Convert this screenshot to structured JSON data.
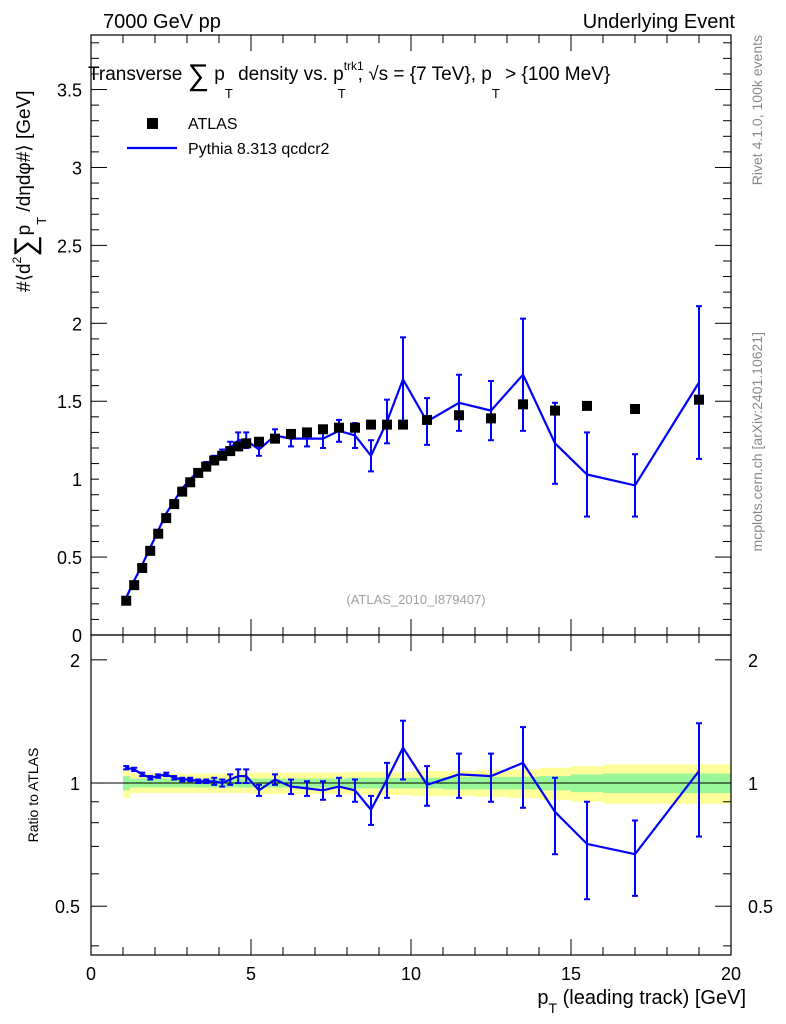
{
  "header": {
    "left": "7000 GeV pp",
    "right": "Underlying Event"
  },
  "side_labels": {
    "rivet": "Rivet 4.1.0,  100k events",
    "mcplots": "mcplots.cern.ch [arXiv:2401.10621]"
  },
  "chart_data": [
    {
      "type": "scatter",
      "panel": "main",
      "title": {
        "lead": "Transverse ",
        "sum": "∑",
        "p": " p",
        "p_sub": "T",
        "mid": "  density vs. p",
        "sup": "trk1",
        "sub2": "T",
        "tail": ", √s = {7 TeV}, p",
        "sub3": "T",
        "end": " > {100 MeV}"
      },
      "ylabel": {
        "pre": "#⟨d",
        "sup": "2",
        "sum": "∑",
        "p": "p",
        "sub": "T",
        "post": " /dηdφ#⟩ [GeV]"
      },
      "watermark": "(ATLAS_2010_I879407)",
      "xlim": [
        0,
        20
      ],
      "ylim": [
        0,
        3.85
      ],
      "yticks": [
        "0.5",
        "1",
        "1.5",
        "2",
        "2.5",
        "3",
        "3.5"
      ],
      "bottom_tick_label": "0",
      "legend": [
        {
          "name": "ATLAS",
          "marker": "square",
          "color": "#000000"
        },
        {
          "name": "Pythia 8.313 qcdcr2",
          "marker": "line",
          "color": "#0000ff"
        }
      ],
      "series": [
        {
          "name": "ATLAS",
          "x": [
            1.1,
            1.35,
            1.6,
            1.85,
            2.1,
            2.35,
            2.6,
            2.85,
            3.1,
            3.35,
            3.6,
            3.85,
            4.1,
            4.35,
            4.6,
            4.85,
            5.25,
            5.75,
            6.25,
            6.75,
            7.25,
            7.75,
            8.25,
            8.75,
            9.25,
            9.75,
            10.5,
            11.5,
            12.5,
            13.5,
            14.5,
            15.5,
            17.0,
            19.0
          ],
          "y": [
            0.22,
            0.32,
            0.43,
            0.54,
            0.65,
            0.75,
            0.84,
            0.92,
            0.98,
            1.04,
            1.08,
            1.12,
            1.15,
            1.18,
            1.21,
            1.23,
            1.24,
            1.26,
            1.29,
            1.3,
            1.32,
            1.33,
            1.33,
            1.35,
            1.35,
            1.35,
            1.38,
            1.41,
            1.39,
            1.48,
            1.44,
            1.47,
            1.45,
            1.51
          ]
        },
        {
          "name": "Pythia 8.313 qcdcr2",
          "x": [
            1.1,
            1.35,
            1.6,
            1.85,
            2.1,
            2.35,
            2.6,
            2.85,
            3.1,
            3.35,
            3.6,
            3.85,
            4.1,
            4.35,
            4.6,
            4.85,
            5.25,
            5.75,
            6.25,
            6.75,
            7.25,
            7.75,
            8.25,
            8.75,
            9.25,
            9.75,
            10.5,
            11.5,
            12.5,
            13.5,
            14.5,
            15.5,
            17.0,
            19.0
          ],
          "y": [
            0.24,
            0.35,
            0.45,
            0.56,
            0.67,
            0.78,
            0.86,
            0.94,
            1.0,
            1.05,
            1.09,
            1.13,
            1.16,
            1.2,
            1.25,
            1.25,
            1.19,
            1.28,
            1.26,
            1.26,
            1.26,
            1.31,
            1.28,
            1.15,
            1.37,
            1.64,
            1.37,
            1.49,
            1.44,
            1.67,
            1.23,
            1.03,
            0.96,
            1.62
          ],
          "err": [
            0.01,
            0.01,
            0.01,
            0.01,
            0.01,
            0.01,
            0.01,
            0.01,
            0.01,
            0.01,
            0.02,
            0.02,
            0.03,
            0.04,
            0.05,
            0.05,
            0.04,
            0.04,
            0.05,
            0.05,
            0.06,
            0.07,
            0.08,
            0.1,
            0.14,
            0.27,
            0.15,
            0.18,
            0.19,
            0.36,
            0.26,
            0.27,
            0.2,
            0.49
          ]
        }
      ]
    },
    {
      "type": "line",
      "panel": "ratio",
      "ylabel": "Ratio to ATLAS",
      "xlabel": {
        "pre": "p",
        "sub": "T",
        "post": " (leading track) [GeV]"
      },
      "xlim": [
        0,
        20
      ],
      "ylim": [
        0.38,
        2.3
      ],
      "yscale": "log",
      "yticks": [
        "0.5",
        "1",
        "2"
      ],
      "xticks": [
        "0",
        "5",
        "10",
        "15",
        "20"
      ],
      "reference": 1,
      "uncertainty_bands": {
        "x_edges": [
          1.0,
          1.225,
          1.475,
          1.725,
          1.975,
          2.225,
          2.475,
          2.725,
          2.975,
          3.225,
          3.475,
          3.725,
          3.975,
          4.225,
          4.475,
          4.725,
          5.0,
          5.5,
          6.0,
          6.5,
          7.0,
          7.5,
          8.0,
          8.5,
          9.0,
          9.5,
          10.0,
          11.0,
          12.0,
          13.0,
          14.0,
          15.0,
          16.0,
          18.0,
          20.0
        ],
        "inner_halfwidth": [
          0.04,
          0.025,
          0.025,
          0.025,
          0.025,
          0.025,
          0.025,
          0.025,
          0.025,
          0.025,
          0.025,
          0.025,
          0.025,
          0.025,
          0.025,
          0.025,
          0.025,
          0.025,
          0.025,
          0.025,
          0.025,
          0.025,
          0.03,
          0.03,
          0.03,
          0.03,
          0.03,
          0.035,
          0.035,
          0.035,
          0.04,
          0.05,
          0.055,
          0.055
        ],
        "outer_halfwidth": [
          0.08,
          0.055,
          0.055,
          0.055,
          0.055,
          0.055,
          0.055,
          0.055,
          0.055,
          0.055,
          0.055,
          0.055,
          0.055,
          0.055,
          0.055,
          0.055,
          0.06,
          0.06,
          0.06,
          0.06,
          0.06,
          0.06,
          0.065,
          0.065,
          0.065,
          0.065,
          0.07,
          0.07,
          0.075,
          0.08,
          0.09,
          0.1,
          0.11,
          0.11
        ],
        "inner_color": "#99f799",
        "outer_color": "#ffff99"
      },
      "series": [
        {
          "name": "Pythia 8.313 qcdcr2",
          "color": "#0000ff",
          "x": [
            1.1,
            1.35,
            1.6,
            1.85,
            2.1,
            2.35,
            2.6,
            2.85,
            3.1,
            3.35,
            3.6,
            3.85,
            4.1,
            4.35,
            4.6,
            4.85,
            5.25,
            5.75,
            6.25,
            6.75,
            7.25,
            7.75,
            8.25,
            8.75,
            9.25,
            9.75,
            10.5,
            11.5,
            12.5,
            13.5,
            14.5,
            15.5,
            17.0,
            19.0
          ],
          "y": [
            1.09,
            1.08,
            1.05,
            1.03,
            1.04,
            1.05,
            1.03,
            1.02,
            1.02,
            1.01,
            1.01,
            1.01,
            1.0,
            1.02,
            1.04,
            1.04,
            0.96,
            1.02,
            0.98,
            0.97,
            0.96,
            0.98,
            0.96,
            0.86,
            1.02,
            1.22,
            0.99,
            1.05,
            1.04,
            1.12,
            0.85,
            0.71,
            0.67,
            1.07
          ],
          "err": [
            0.01,
            0.01,
            0.01,
            0.01,
            0.01,
            0.01,
            0.01,
            0.01,
            0.01,
            0.01,
            0.01,
            0.02,
            0.02,
            0.03,
            0.04,
            0.04,
            0.03,
            0.03,
            0.04,
            0.04,
            0.05,
            0.05,
            0.06,
            0.07,
            0.1,
            0.2,
            0.11,
            0.13,
            0.14,
            0.25,
            0.18,
            0.19,
            0.14,
            0.33
          ]
        }
      ]
    }
  ]
}
